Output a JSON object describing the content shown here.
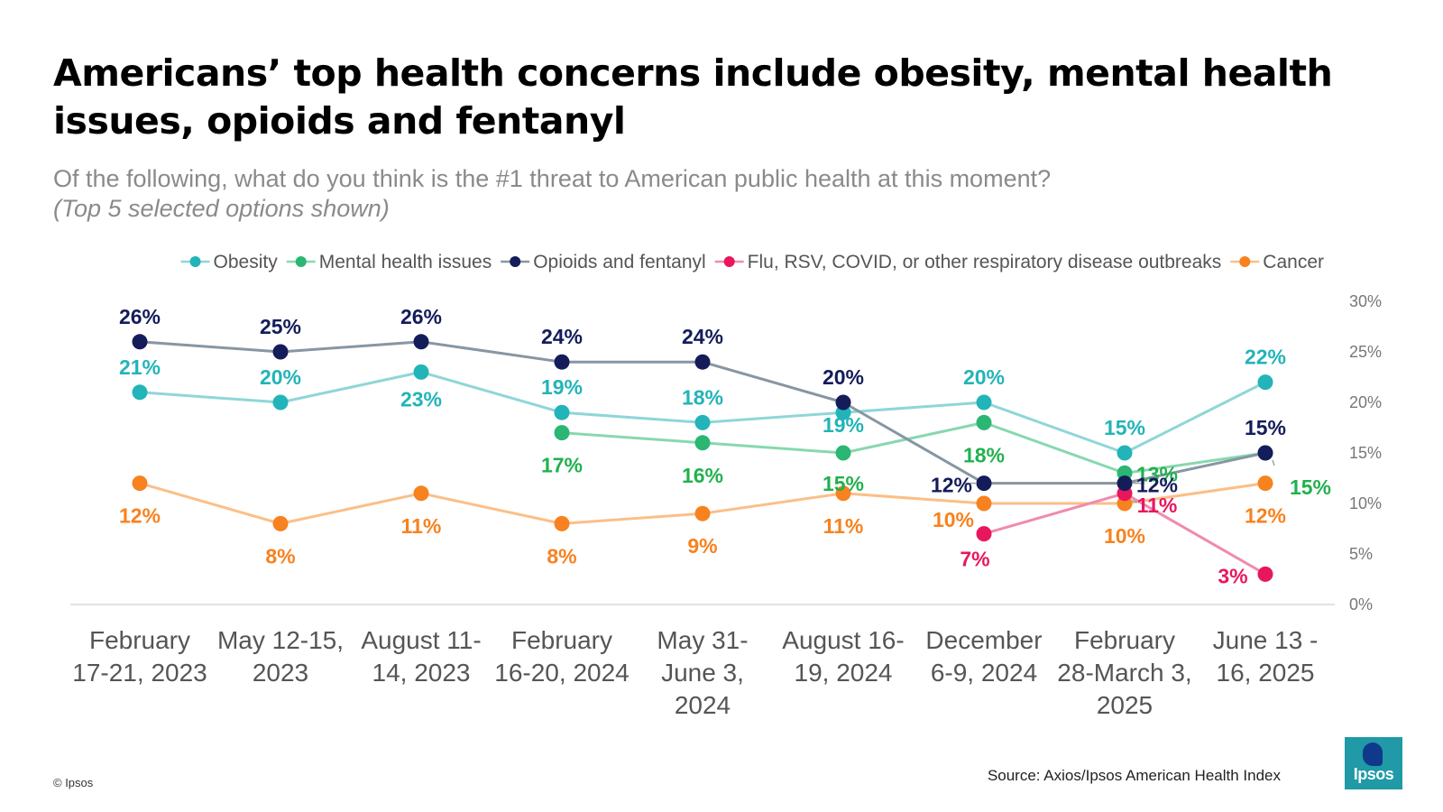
{
  "title": "Americans’ top health concerns include obesity, mental health issues, opioids and fentanyl",
  "subtitle": "Of the following, what do you think is the #1 threat to American public health at this moment?",
  "subtitle_note": "(Top 5 selected options shown)",
  "copyright": "© Ipsos",
  "source": "Source: Axios/Ipsos American Health Index",
  "logo_text": "Ipsos",
  "chart_data": {
    "type": "line",
    "x": [
      [
        "February",
        "17-21, 2023"
      ],
      [
        "May 12-15,",
        "2023"
      ],
      [
        "August 11-",
        "14, 2023"
      ],
      [
        "February",
        "16-20, 2024"
      ],
      [
        "May 31-",
        "June 3,",
        "2024"
      ],
      [
        "August 16-",
        "19, 2024"
      ],
      [
        "December",
        "6-9, 2024"
      ],
      [
        "February",
        "28-March 3,",
        "2025"
      ],
      [
        "June 13 -",
        "16, 2025"
      ]
    ],
    "y_ticks": [
      "0%",
      "5%",
      "10%",
      "15%",
      "20%",
      "25%",
      "30%"
    ],
    "ylim": [
      0,
      30
    ],
    "y_axis_side": "right",
    "legend_position": "top-right",
    "series": [
      {
        "name": "Obesity",
        "color": "#22b4b8",
        "line_color": "#8fd6d8",
        "label_color": "#22b4b8",
        "values": [
          21,
          20,
          23,
          19,
          18,
          19,
          20,
          15,
          22
        ],
        "labels": [
          "21%",
          "20%",
          "23%",
          "19%",
          "18%",
          "19%",
          "20%",
          "15%",
          "22%"
        ]
      },
      {
        "name": "Mental health issues",
        "color": "#2bb673",
        "line_color": "#88d8ad",
        "label_color": "#22b04f",
        "values": [
          null,
          null,
          null,
          17,
          16,
          15,
          18,
          13,
          15
        ],
        "labels": [
          null,
          null,
          null,
          "17%",
          "16%",
          "15%",
          "18%",
          "13%",
          "15%"
        ]
      },
      {
        "name": "Opioids and fentanyl",
        "color": "#141c5a",
        "line_color": "#8796a2",
        "label_color": "#141c5a",
        "values": [
          26,
          25,
          26,
          24,
          24,
          20,
          12,
          12,
          15
        ],
        "labels": [
          "26%",
          "25%",
          "26%",
          "24%",
          "24%",
          "20%",
          "12%",
          "12%",
          "15%"
        ]
      },
      {
        "name": "Flu, RSV, COVID, or other respiratory disease outbreaks",
        "color": "#e8175d",
        "line_color": "#f08ab0",
        "label_color": "#e8175d",
        "values": [
          null,
          null,
          null,
          null,
          null,
          null,
          7,
          11,
          3
        ],
        "labels": [
          null,
          null,
          null,
          null,
          null,
          null,
          "7%",
          "11%",
          "3%"
        ]
      },
      {
        "name": "Cancer",
        "color": "#f7821f",
        "line_color": "#fbbf88",
        "label_color": "#f7821f",
        "values": [
          12,
          8,
          11,
          8,
          9,
          11,
          10,
          10,
          12
        ],
        "labels": [
          "12%",
          "8%",
          "11%",
          "8%",
          "9%",
          "11%",
          "10%",
          "10%",
          "12%"
        ]
      }
    ]
  }
}
